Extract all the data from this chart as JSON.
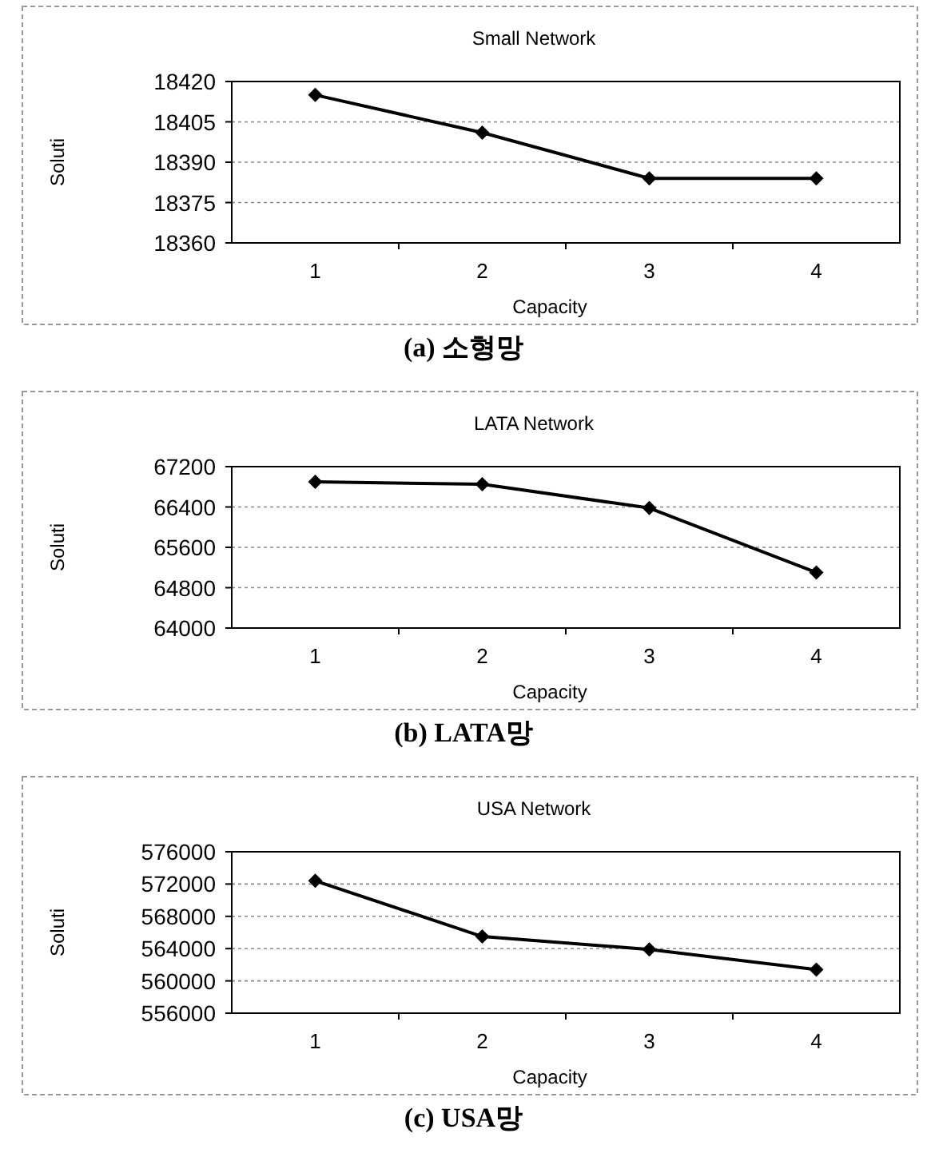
{
  "chart_data": [
    {
      "type": "line",
      "title": "Small Network",
      "xlabel": "Capacity",
      "ylabel": "Soluti",
      "categories": [
        "1",
        "2",
        "3",
        "4"
      ],
      "series": [
        {
          "color": "#000000",
          "values": [
            18415,
            18401,
            18384,
            18384
          ]
        }
      ],
      "ylim": [
        18360,
        18420
      ],
      "yticks": [
        18360,
        18375,
        18390,
        18405,
        18420
      ],
      "grid": "y",
      "marker": "diamond",
      "annotations": [
        "(a) 소형망"
      ]
    },
    {
      "type": "line",
      "title": "LATA Network",
      "xlabel": "Capacity",
      "ylabel": "Soluti",
      "categories": [
        "1",
        "2",
        "3",
        "4"
      ],
      "series": [
        {
          "color": "#000000",
          "values": [
            66900,
            66850,
            66380,
            65100
          ]
        }
      ],
      "ylim": [
        64000,
        67200
      ],
      "yticks": [
        64000,
        64800,
        65600,
        66400,
        67200
      ],
      "grid": "y",
      "marker": "diamond",
      "annotations": [
        "(b) LATA망"
      ]
    },
    {
      "type": "line",
      "title": "USA Network",
      "xlabel": "Capacity",
      "ylabel": "Soluti",
      "categories": [
        "1",
        "2",
        "3",
        "4"
      ],
      "series": [
        {
          "color": "#000000",
          "values": [
            572400,
            565500,
            563900,
            561400
          ]
        }
      ],
      "ylim": [
        556000,
        576000
      ],
      "yticks": [
        556000,
        560000,
        564000,
        568000,
        572000,
        576000
      ],
      "grid": "y",
      "marker": "diamond",
      "annotations": [
        "(c) USA망"
      ]
    }
  ]
}
